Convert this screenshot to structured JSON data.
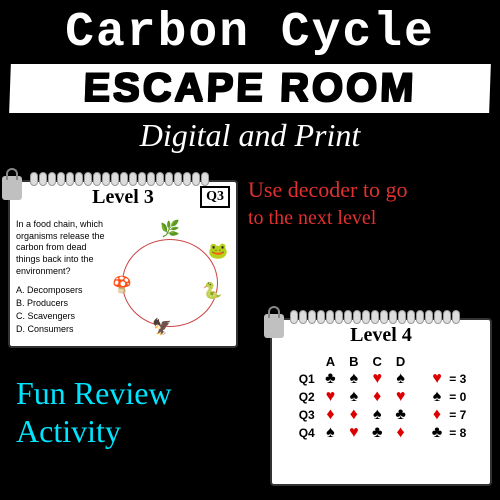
{
  "header": {
    "top_title": "Carbon Cycle",
    "main_title": "ESCAPE ROOM",
    "subtitle": "Digital and Print"
  },
  "callout_right": {
    "line1": "Use decoder to go",
    "line2": "to the next level"
  },
  "callout_left": {
    "line1": "Fun Review",
    "line2": "Activity"
  },
  "card_level3": {
    "level_label": "Level 3",
    "q_label": "Q3",
    "question": "In a food chain, which organisms release the carbon from dead things back into the environment?",
    "answers": {
      "a": "A. Decomposers",
      "b": "B. Producers",
      "c": "C. Scavengers",
      "d": "D. Consumers"
    }
  },
  "card_level4": {
    "level_label": "Level 4",
    "columns": [
      "A",
      "B",
      "C",
      "D"
    ],
    "rows": [
      {
        "label": "Q1",
        "cells": [
          "♣",
          "♠",
          "♥",
          "♠"
        ],
        "colors": [
          "blk",
          "blk",
          "red",
          "blk"
        ],
        "key": "♥",
        "key_color": "red",
        "val": "3"
      },
      {
        "label": "Q2",
        "cells": [
          "♥",
          "♠",
          "♦",
          "♥"
        ],
        "colors": [
          "red",
          "blk",
          "red",
          "red"
        ],
        "key": "♠",
        "key_color": "blk",
        "val": "0"
      },
      {
        "label": "Q3",
        "cells": [
          "♦",
          "♦",
          "♠",
          "♣"
        ],
        "colors": [
          "red",
          "red",
          "blk",
          "blk"
        ],
        "key": "♦",
        "key_color": "red",
        "val": "7"
      },
      {
        "label": "Q4",
        "cells": [
          "♠",
          "♥",
          "♣",
          "♦"
        ],
        "colors": [
          "blk",
          "red",
          "blk",
          "red"
        ],
        "key": "♣",
        "key_color": "blk",
        "val": "8"
      }
    ]
  },
  "style": {
    "bg": "#000000",
    "red_text": "#e03030",
    "cyan_text": "#00e5ff",
    "white": "#ffffff"
  }
}
